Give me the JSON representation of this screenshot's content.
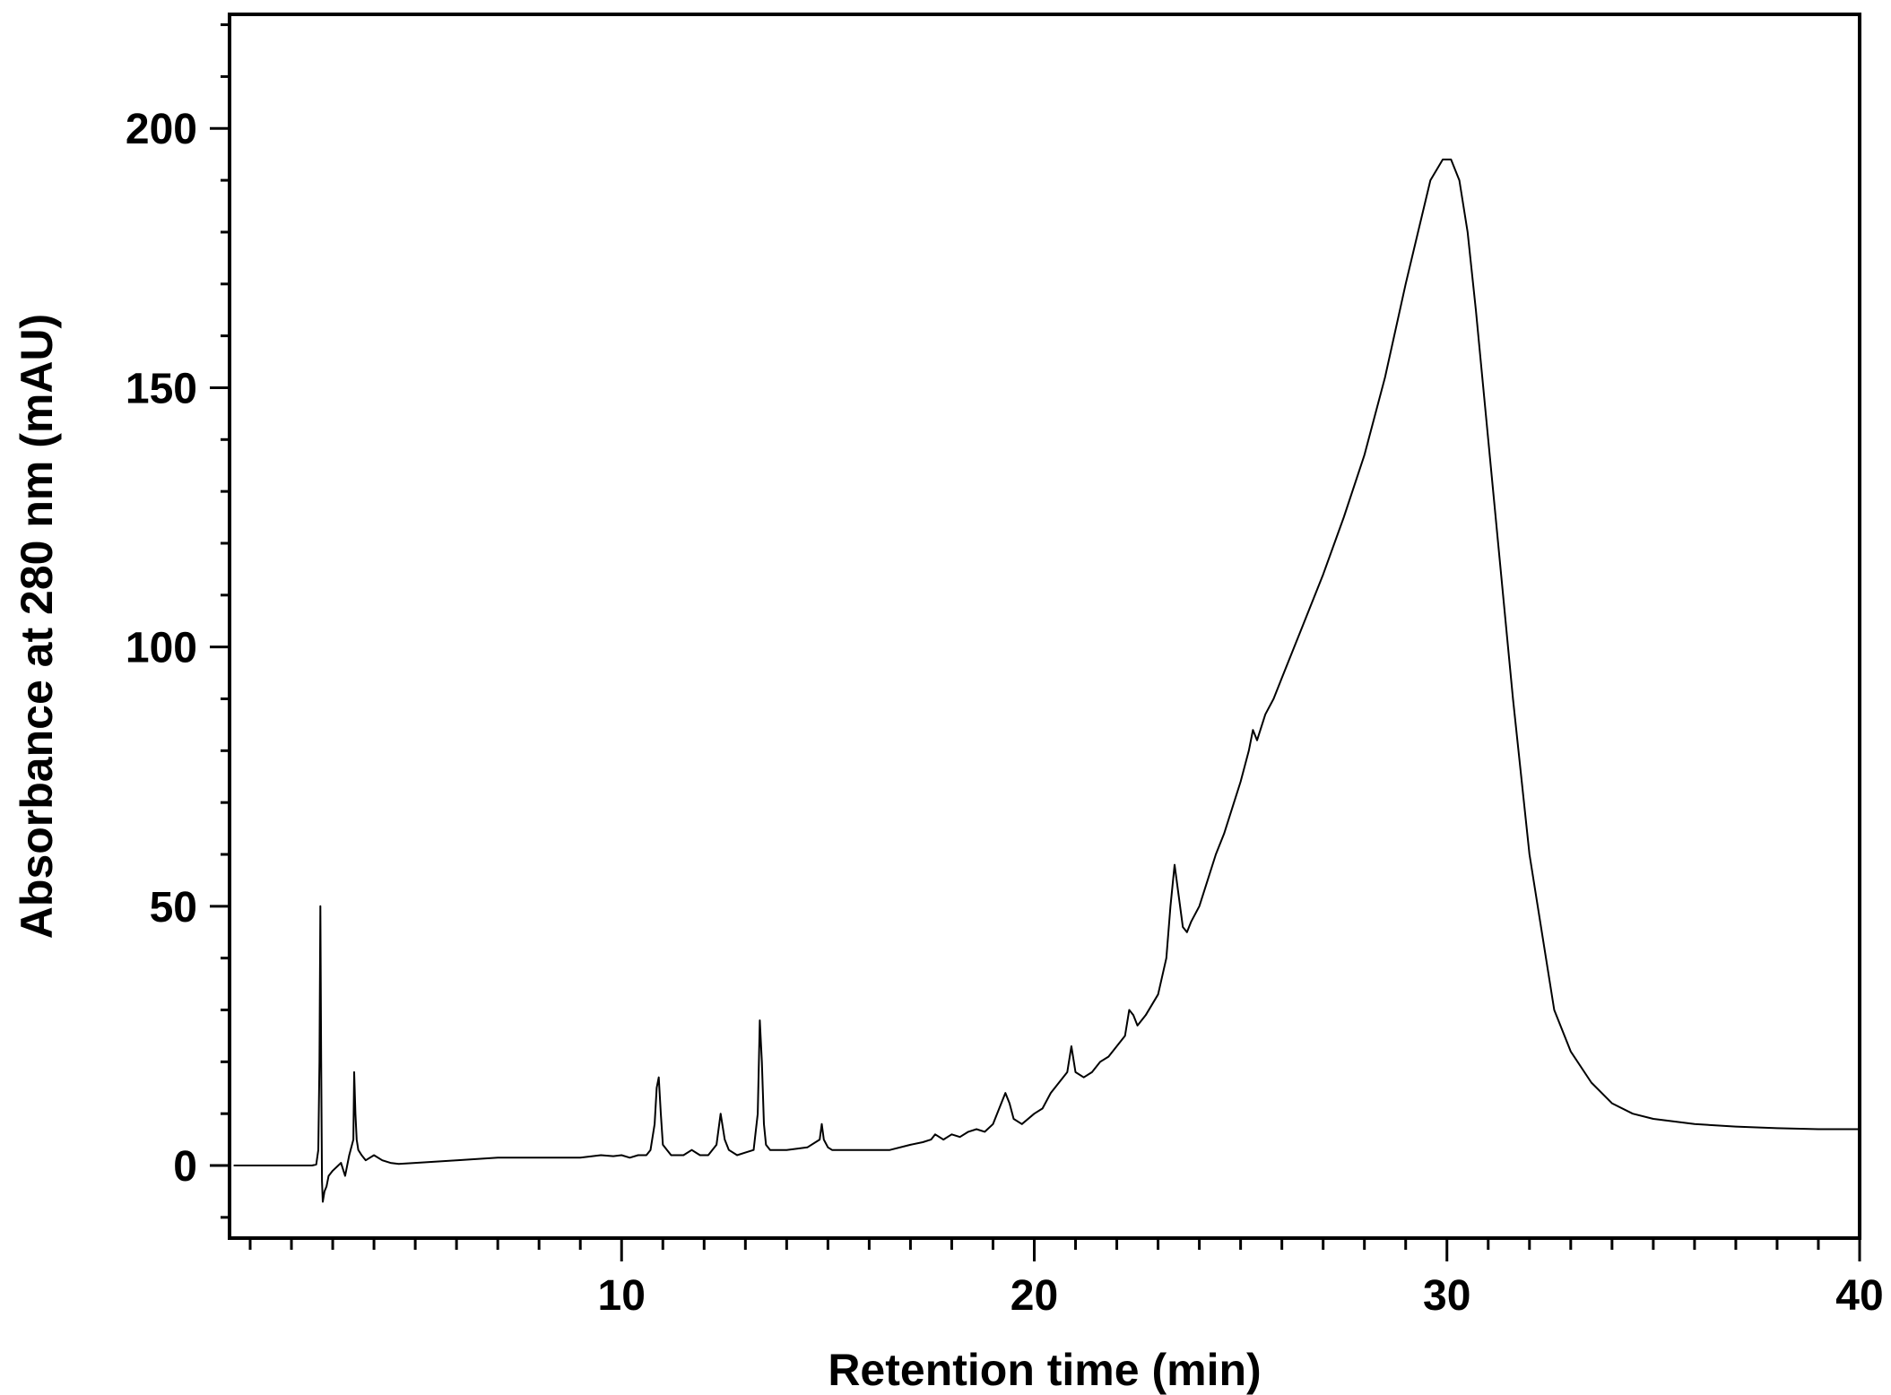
{
  "chart_data": {
    "type": "line",
    "title": "",
    "xlabel": "Retention time (min)",
    "ylabel": "Absorbance at  280 nm (mAU)",
    "xlim": [
      0.5,
      40
    ],
    "ylim": [
      -14,
      222
    ],
    "xticks": [
      10,
      20,
      30,
      40
    ],
    "yticks": [
      0,
      50,
      100,
      150,
      200
    ],
    "x_minor_step": 1,
    "y_minor_step": 10,
    "grid": false,
    "legend": "none",
    "series": [
      {
        "x": [
          0.6,
          2.5,
          2.6,
          2.65,
          2.68,
          2.7,
          2.72,
          2.74,
          2.76,
          2.8,
          2.85,
          2.9,
          3.0,
          3.2,
          3.3,
          3.4,
          3.5,
          3.52,
          3.55,
          3.58,
          3.62,
          3.7,
          3.8,
          4.0,
          4.2,
          4.4,
          4.6,
          5.0,
          6.0,
          7.0,
          8.0,
          9.0,
          9.5,
          9.8,
          10.0,
          10.2,
          10.4,
          10.6,
          10.7,
          10.8,
          10.85,
          10.9,
          10.95,
          11.0,
          11.1,
          11.2,
          11.5,
          11.7,
          11.8,
          11.9,
          12.1,
          12.3,
          12.4,
          12.5,
          12.6,
          12.8,
          13.0,
          13.2,
          13.3,
          13.35,
          13.4,
          13.45,
          13.5,
          13.6,
          13.8,
          14.0,
          14.5,
          14.8,
          14.85,
          14.9,
          15.0,
          15.1,
          15.5,
          16.0,
          16.5,
          17.0,
          17.3,
          17.5,
          17.6,
          17.8,
          18.0,
          18.2,
          18.4,
          18.6,
          18.8,
          19.0,
          19.2,
          19.3,
          19.4,
          19.5,
          19.7,
          20.0,
          20.2,
          20.4,
          20.6,
          20.8,
          20.9,
          21.0,
          21.2,
          21.4,
          21.6,
          21.8,
          22.0,
          22.2,
          22.3,
          22.4,
          22.5,
          22.7,
          23.0,
          23.2,
          23.3,
          23.4,
          23.5,
          23.6,
          23.7,
          23.8,
          24.0,
          24.2,
          24.4,
          24.6,
          24.8,
          25.0,
          25.2,
          25.3,
          25.4,
          25.6,
          25.8,
          26.0,
          26.5,
          27.0,
          27.5,
          28.0,
          28.5,
          29.0,
          29.3,
          29.6,
          29.9,
          30.1,
          30.3,
          30.5,
          30.7,
          31.0,
          31.3,
          31.6,
          32.0,
          32.3,
          32.6,
          33.0,
          33.5,
          34.0,
          34.5,
          35.0,
          35.5,
          36.0,
          37.0,
          38.0,
          39.0,
          40.0
        ],
        "y": [
          0,
          0,
          0.2,
          3,
          20,
          50,
          20,
          -3,
          -7,
          -5,
          -4,
          -2,
          -1,
          0.5,
          -2,
          2,
          5,
          18,
          10,
          5,
          3,
          2,
          1,
          2,
          1,
          0.5,
          0.3,
          0.5,
          1,
          1.5,
          1.5,
          1.5,
          2,
          1.8,
          2,
          1.5,
          2,
          2,
          3,
          8,
          15,
          17,
          10,
          4,
          3,
          2,
          2,
          3,
          2.5,
          2,
          2,
          4,
          10,
          5,
          3,
          2,
          2.5,
          3,
          10,
          28,
          20,
          8,
          4,
          3,
          3,
          3,
          3.5,
          5,
          8,
          5,
          3.5,
          3,
          3,
          3,
          3,
          4,
          4.5,
          5,
          6,
          5,
          6,
          5.5,
          6.5,
          7,
          6.5,
          8,
          12,
          14,
          12,
          9,
          8,
          10,
          11,
          14,
          16,
          18,
          23,
          18,
          17,
          18,
          20,
          21,
          23,
          25,
          30,
          29,
          27,
          29,
          33,
          40,
          50,
          58,
          52,
          46,
          45,
          47,
          50,
          55,
          60,
          64,
          69,
          74,
          80,
          84,
          82,
          87,
          90,
          94,
          104,
          114,
          125,
          137,
          152,
          170,
          180,
          190,
          194,
          194,
          190,
          180,
          165,
          140,
          115,
          90,
          60,
          45,
          30,
          22,
          16,
          12,
          10,
          9,
          8.5,
          8,
          7.5,
          7.2,
          7,
          7
        ]
      }
    ]
  }
}
